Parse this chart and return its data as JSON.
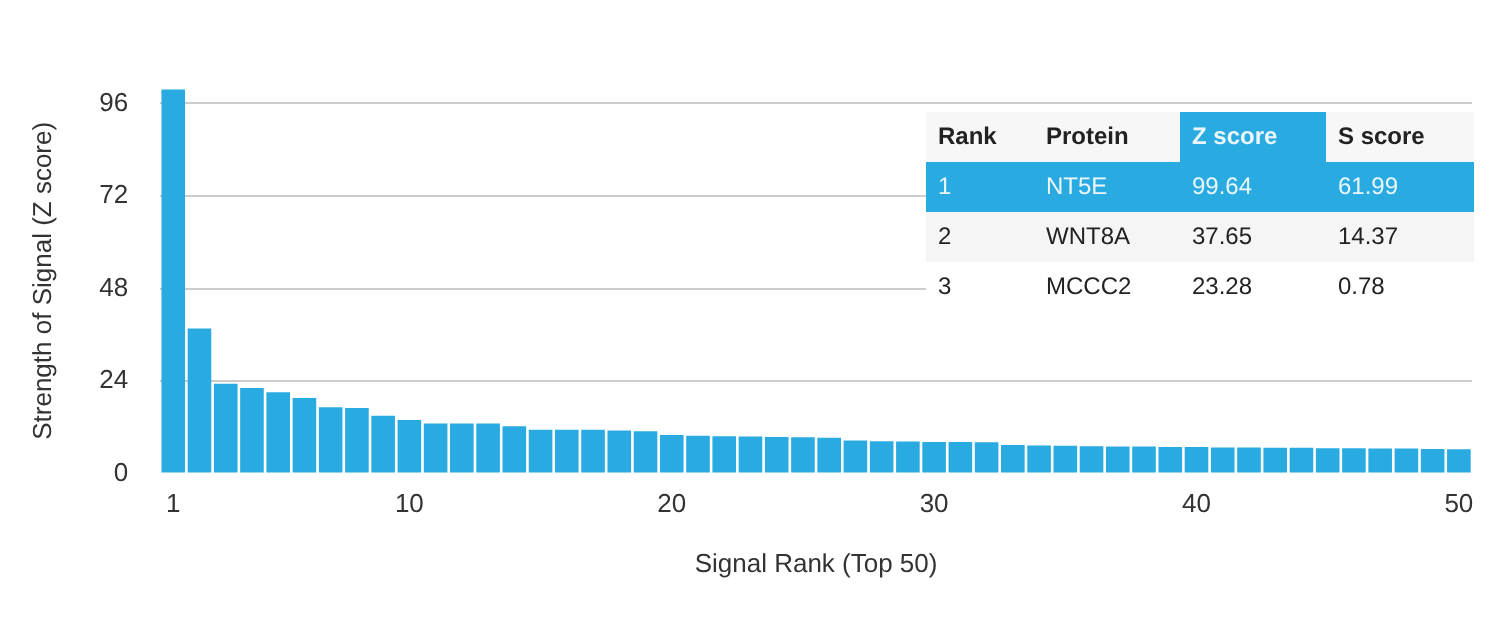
{
  "chart_data": {
    "type": "bar",
    "xlabel": "Signal Rank (Top 50)",
    "ylabel": "Strength of Signal (Z score)",
    "categories": [
      "1",
      null,
      null,
      null,
      null,
      null,
      null,
      null,
      null,
      "10",
      null,
      null,
      null,
      null,
      null,
      null,
      null,
      null,
      null,
      "20",
      null,
      null,
      null,
      null,
      null,
      null,
      null,
      null,
      null,
      "30",
      null,
      null,
      null,
      null,
      null,
      null,
      null,
      null,
      null,
      "40",
      null,
      null,
      null,
      null,
      null,
      null,
      null,
      null,
      null,
      "50"
    ],
    "values": [
      99.64,
      37.65,
      23.28,
      22.2,
      21.1,
      19.6,
      17.2,
      17.0,
      15.0,
      13.9,
      13.0,
      13.0,
      13.0,
      12.3,
      11.4,
      11.4,
      11.4,
      11.2,
      11.0,
      10.0,
      9.8,
      9.7,
      9.6,
      9.5,
      9.4,
      9.3,
      8.6,
      8.4,
      8.3,
      8.2,
      8.2,
      8.1,
      7.4,
      7.3,
      7.2,
      7.1,
      7.0,
      7.0,
      6.9,
      6.9,
      6.8,
      6.8,
      6.7,
      6.7,
      6.6,
      6.6,
      6.5,
      6.5,
      6.4,
      6.3
    ],
    "color": "#29abe2",
    "ylim": [
      0,
      100
    ],
    "yticks": [
      0,
      24,
      48,
      72,
      96
    ],
    "grid": "y",
    "annotations": [
      "Rank",
      "Protein",
      "Z score",
      "S score",
      "1",
      "NT5E",
      "99.64",
      "61.99",
      "2",
      "WNT8A",
      "37.65",
      "14.37",
      "3",
      "MCCC2",
      "23.28",
      "0.78"
    ]
  }
}
